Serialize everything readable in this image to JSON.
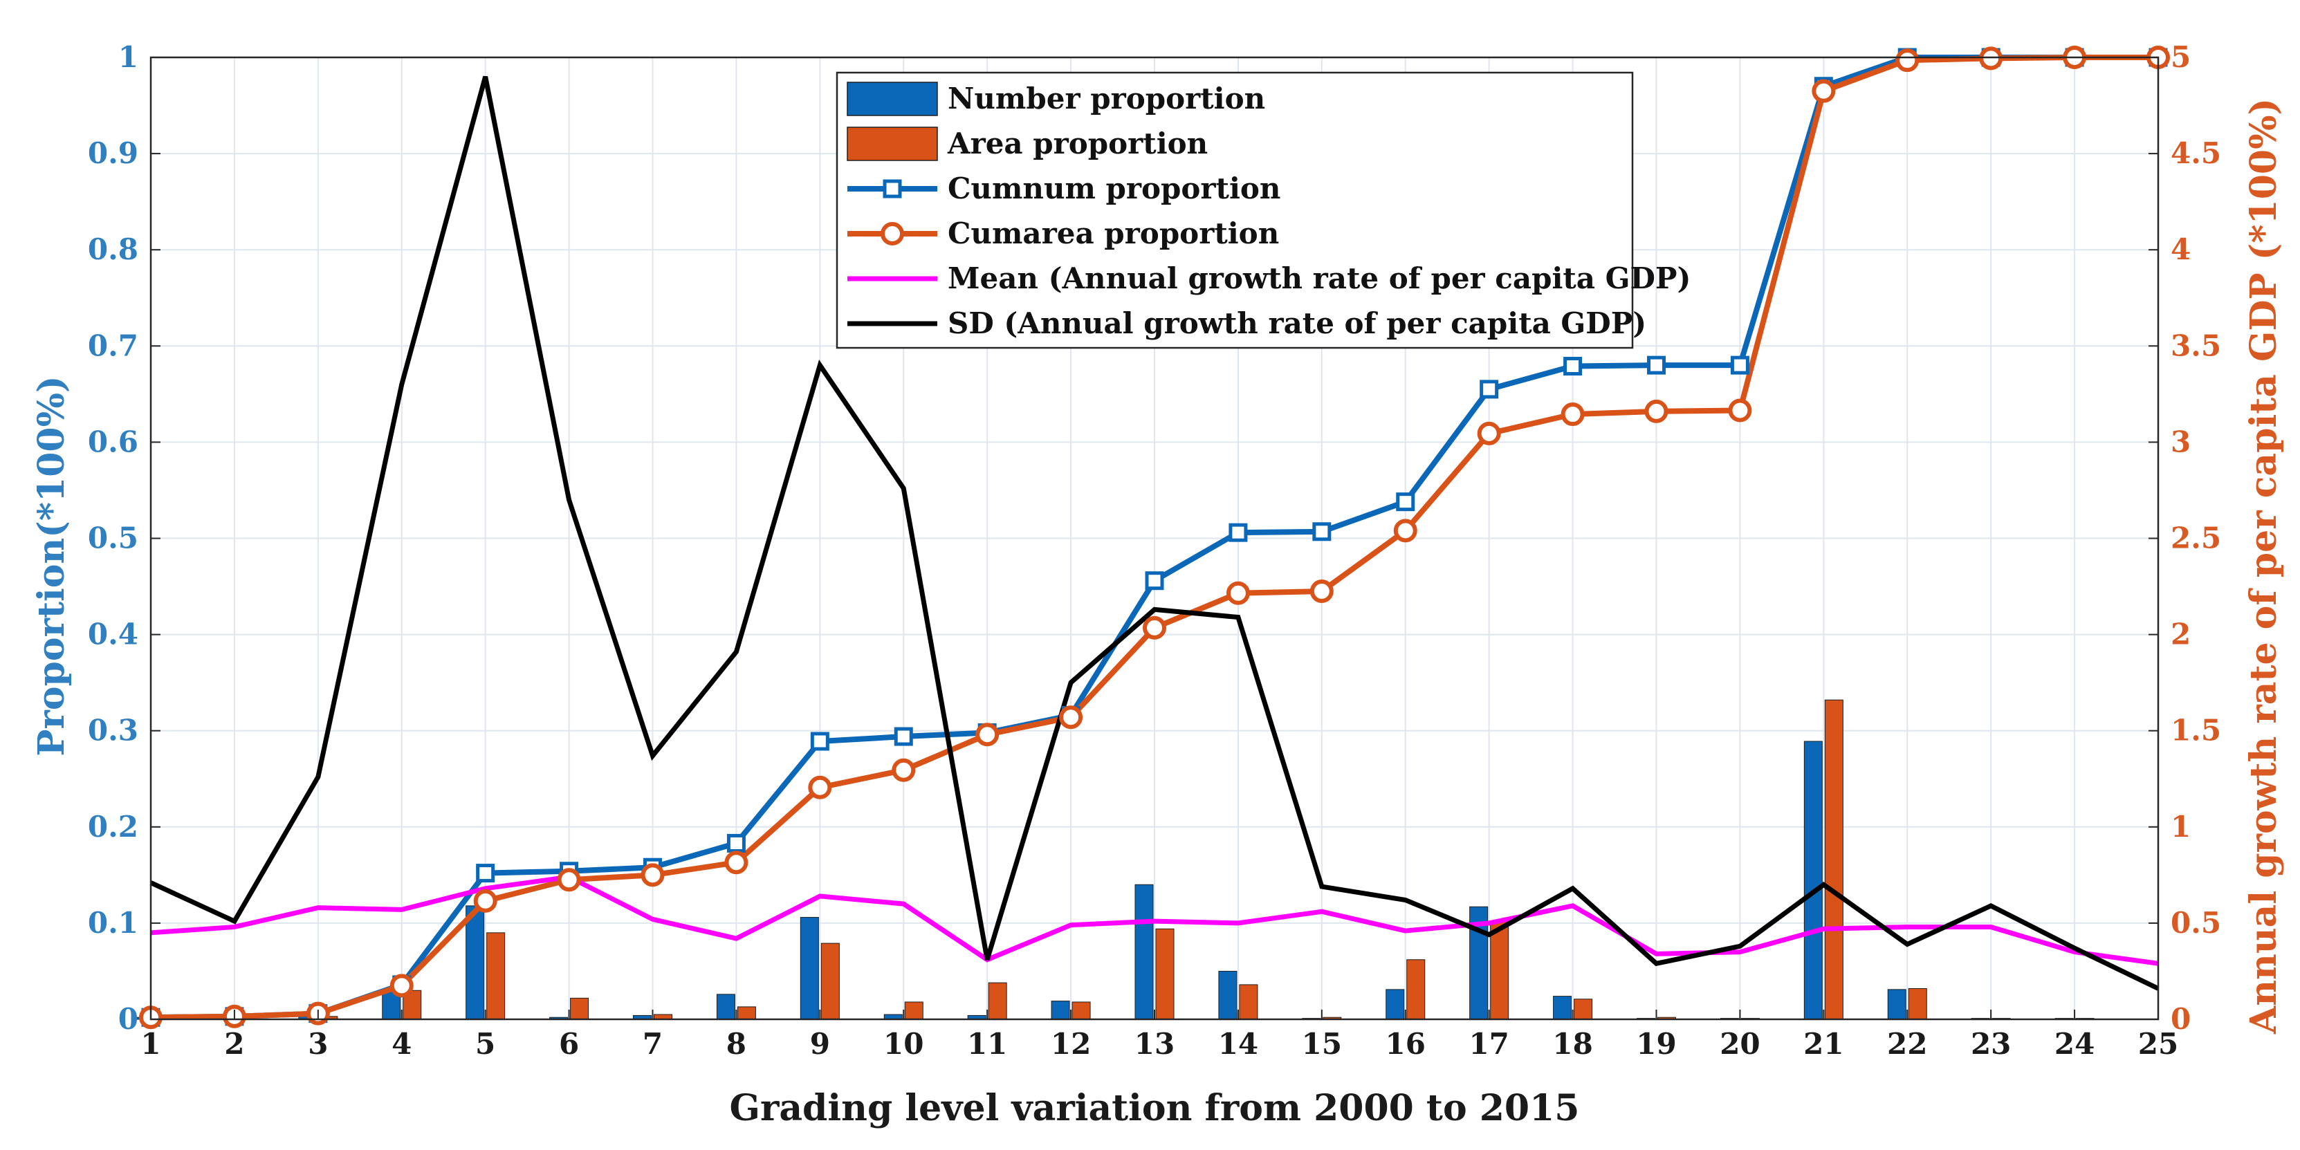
{
  "chart_data": {
    "type": "bar+line",
    "title": "",
    "xlabel": "Grading level variation from 2000 to 2015",
    "ylabel_left": "Proportion(*100%)",
    "ylabel_right": "Annual growth rate of per capita GDP (*100%)",
    "categories": [
      "1",
      "2",
      "3",
      "4",
      "5",
      "6",
      "7",
      "8",
      "9",
      "10",
      "11",
      "12",
      "13",
      "14",
      "15",
      "16",
      "17",
      "18",
      "19",
      "20",
      "21",
      "22",
      "23",
      "24",
      "25"
    ],
    "ylim_left": [
      0,
      1
    ],
    "ylim_right": [
      0,
      5
    ],
    "yticks_left": [
      "0",
      "0.1",
      "0.2",
      "0.3",
      "0.4",
      "0.5",
      "0.6",
      "0.7",
      "0.8",
      "0.9",
      "1"
    ],
    "yticks_right": [
      "0",
      "0.5",
      "1",
      "1.5",
      "2",
      "2.5",
      "3",
      "3.5",
      "4",
      "4.5",
      "5"
    ],
    "grid": true,
    "legend_position": "top-center",
    "colors": {
      "blue": "#0b68b8",
      "orange": "#d95319",
      "magenta": "#ff00ff",
      "black": "#000000",
      "grid": "#dfe6ee"
    },
    "series": [
      {
        "name": "Number proportion",
        "kind": "bar",
        "axis": "left",
        "color": "#0b68b8",
        "values": [
          0.002,
          0.001,
          0.003,
          0.03,
          0.118,
          0.002,
          0.004,
          0.026,
          0.106,
          0.005,
          0.004,
          0.019,
          0.14,
          0.05,
          0.001,
          0.031,
          0.117,
          0.024,
          0.001,
          0.001,
          0.289,
          0.031,
          0.001,
          0.001,
          0.0
        ]
      },
      {
        "name": "Area proportion",
        "kind": "bar",
        "axis": "left",
        "color": "#d95319",
        "values": [
          0.001,
          0.001,
          0.003,
          0.03,
          0.09,
          0.022,
          0.005,
          0.013,
          0.079,
          0.018,
          0.038,
          0.018,
          0.094,
          0.036,
          0.002,
          0.062,
          0.102,
          0.021,
          0.002,
          0.001,
          0.332,
          0.032,
          0.001,
          0.001,
          0.0
        ]
      },
      {
        "name": "Cumnum proportion",
        "kind": "line",
        "marker": "square",
        "axis": "left",
        "color": "#0b68b8",
        "values": [
          0.002,
          0.003,
          0.006,
          0.036,
          0.152,
          0.154,
          0.158,
          0.183,
          0.289,
          0.294,
          0.298,
          0.316,
          0.456,
          0.506,
          0.507,
          0.538,
          0.655,
          0.679,
          0.68,
          0.68,
          0.97,
          1.0,
          1.0,
          1.0,
          1.0
        ]
      },
      {
        "name": "Cumarea proportion",
        "kind": "line",
        "marker": "circle",
        "axis": "left",
        "color": "#d95319",
        "values": [
          0.002,
          0.003,
          0.006,
          0.035,
          0.123,
          0.145,
          0.15,
          0.163,
          0.241,
          0.259,
          0.296,
          0.314,
          0.407,
          0.443,
          0.445,
          0.508,
          0.609,
          0.629,
          0.632,
          0.633,
          0.965,
          0.997,
          0.999,
          1.0,
          1.0
        ]
      },
      {
        "name": "Mean (Annual growth rate of per capita GDP)",
        "kind": "line",
        "axis": "right",
        "color": "#ff00ff",
        "values": [
          0.45,
          0.48,
          0.58,
          0.57,
          0.68,
          0.74,
          0.52,
          0.42,
          0.64,
          0.6,
          0.31,
          0.49,
          0.51,
          0.5,
          0.56,
          0.46,
          0.5,
          0.59,
          0.34,
          0.35,
          0.47,
          0.48,
          0.48,
          0.35,
          0.29
        ]
      },
      {
        "name": "SD (Annual growth rate of per capita GDP)",
        "kind": "line",
        "axis": "right",
        "color": "#000000",
        "values": [
          0.71,
          0.51,
          1.26,
          3.3,
          4.9,
          2.7,
          1.37,
          1.91,
          3.4,
          2.76,
          0.31,
          1.75,
          2.13,
          2.09,
          0.69,
          0.62,
          0.44,
          0.68,
          0.29,
          0.38,
          0.7,
          0.39,
          0.59,
          0.37,
          0.16
        ]
      }
    ]
  }
}
